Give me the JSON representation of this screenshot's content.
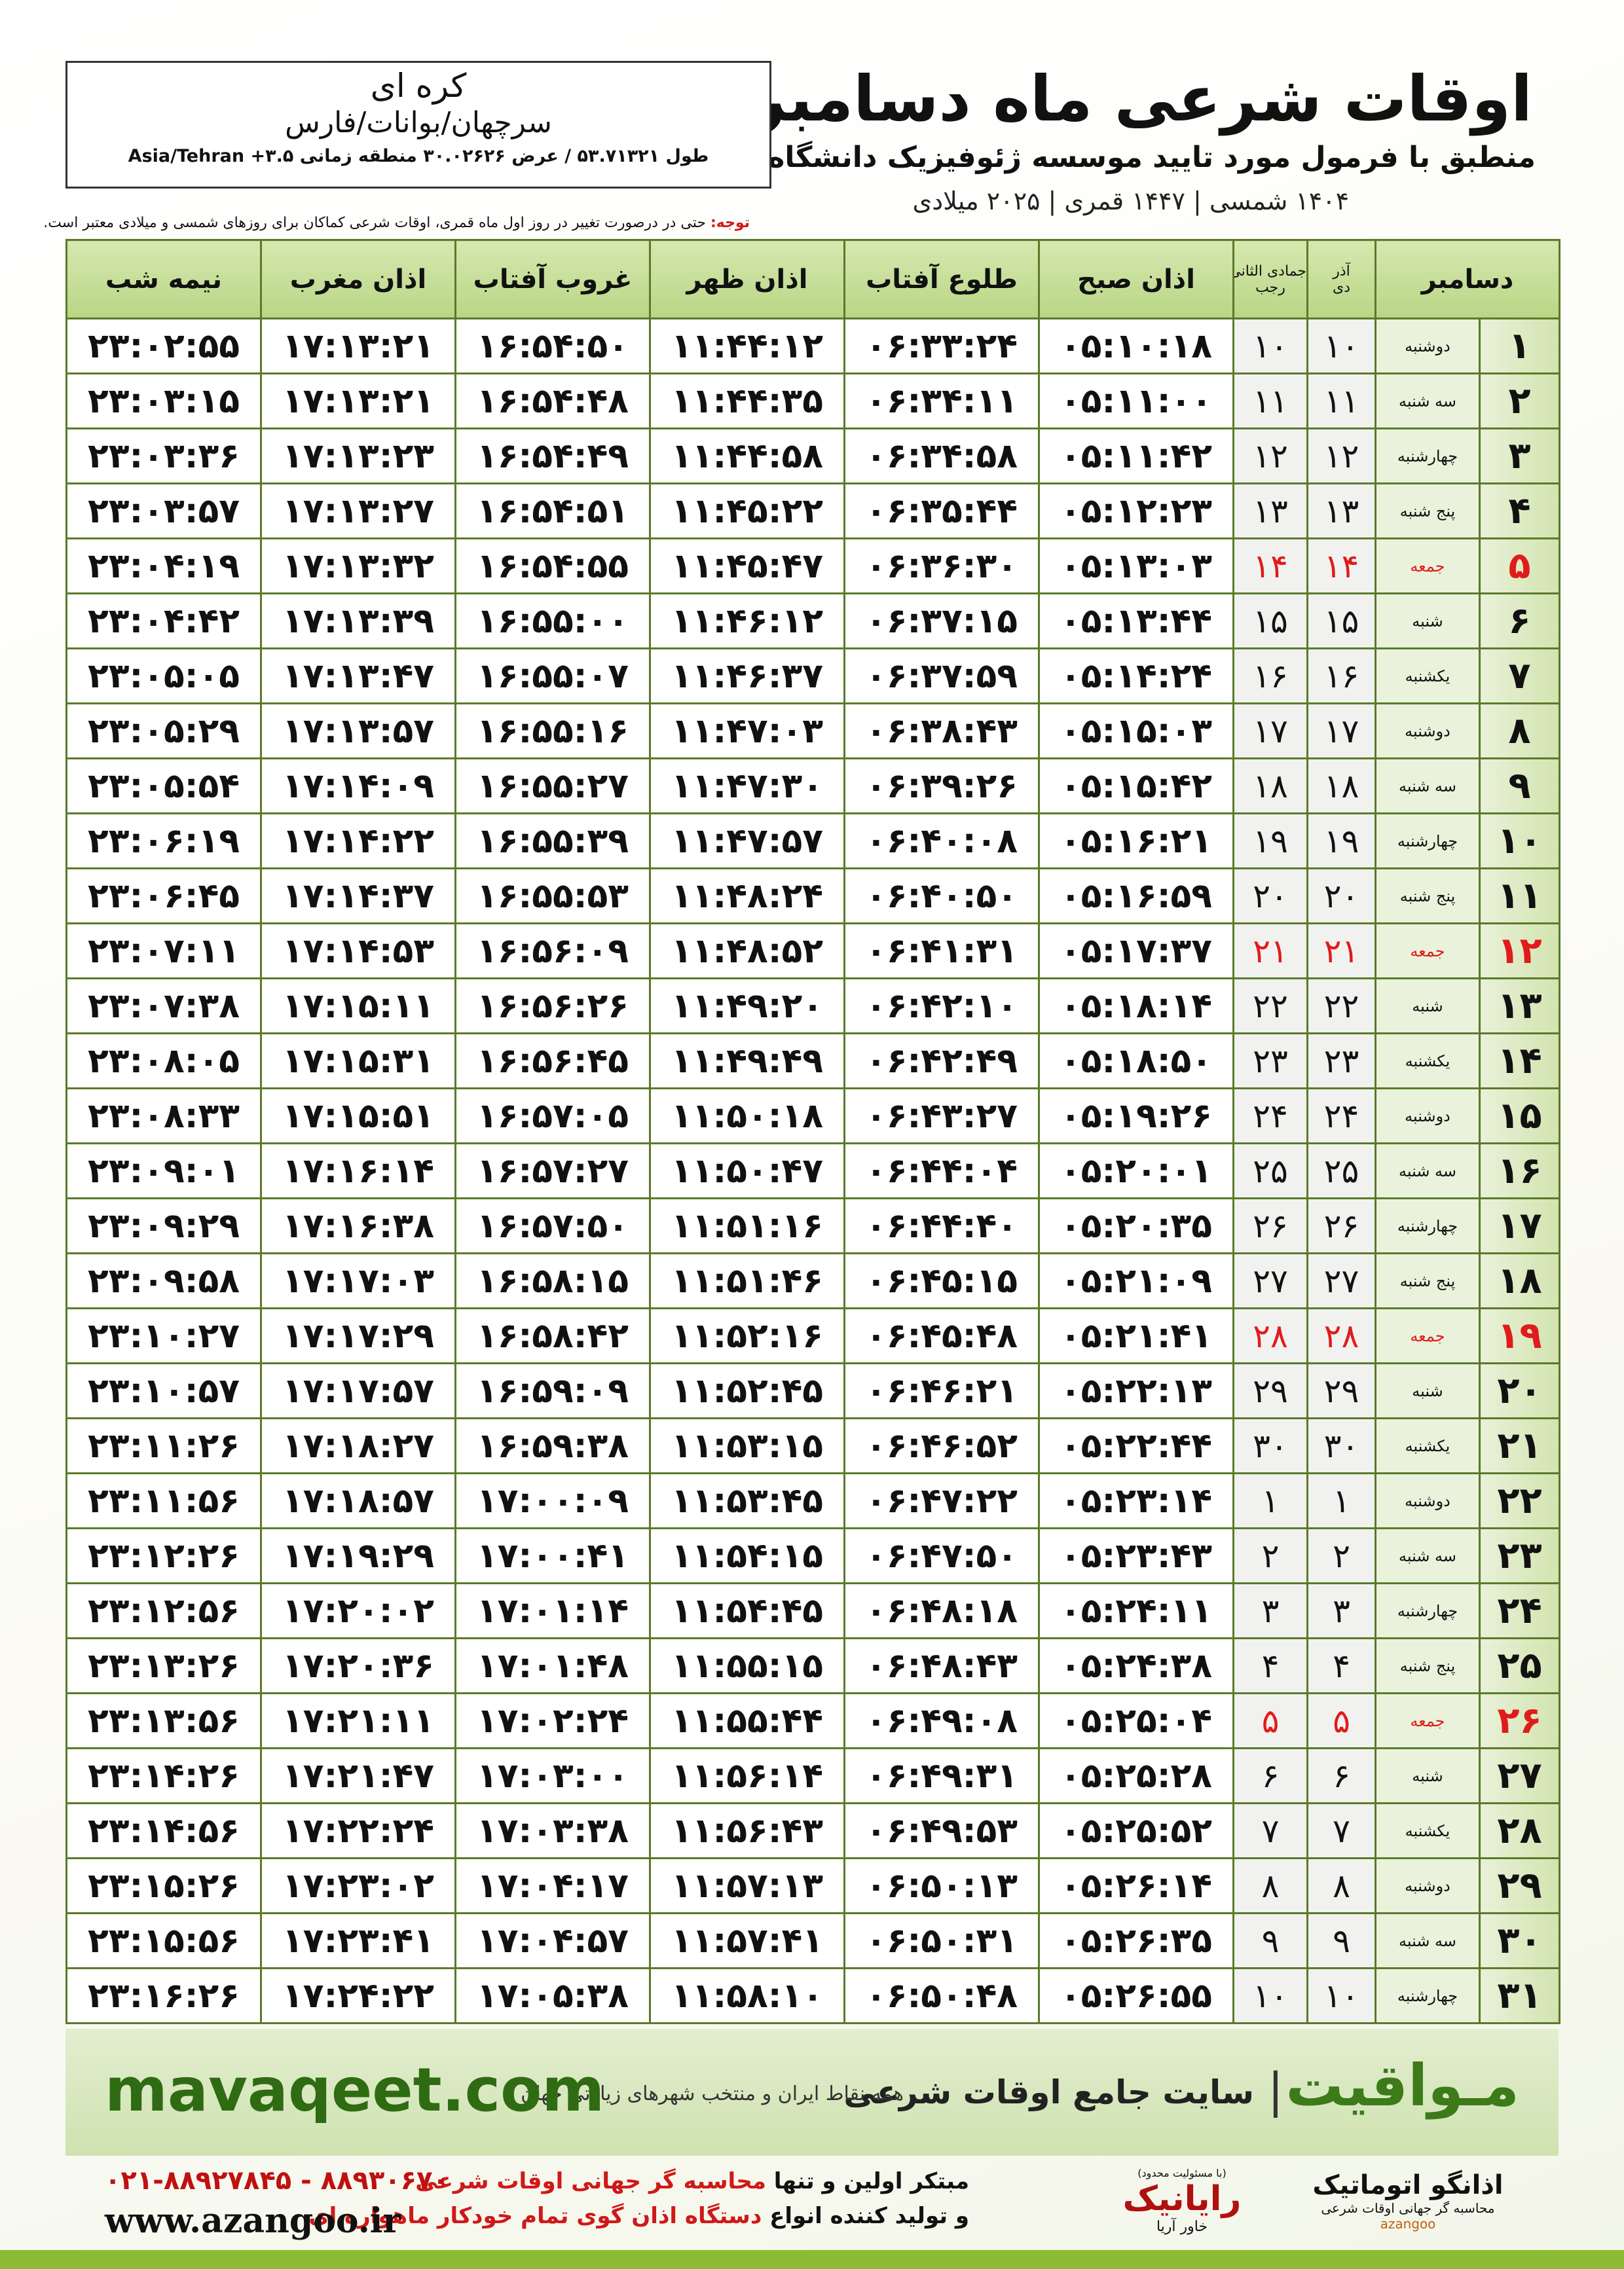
{
  "header": {
    "title": "اوقات شرعی ماه دسامبر",
    "subtitle": "منطبق با فرمول مورد تایید موسسه ژئوفیزیک دانشگاه تهران",
    "dates": "۱۴۰۴ شمسی | ۱۴۴۷ قمری | ۲۰۲۵ میلادی"
  },
  "location": {
    "name": "کره ای",
    "region": "سرچهان/بوانات/فارس",
    "coords": "طول ۵۳.۷۱۳۲۱ / عرض ۳۰.۰۲۶۲۶ منطقه زمانی ۳.۵+ Asia/Tehran"
  },
  "note": {
    "label": "توجه:",
    "text": "حتی در درصورت تغییر در روز اول ماه قمری، اوقات شرعی کماکان برای روزهای شمسی و میلادی معتبر است."
  },
  "table": {
    "columns": [
      "دسامبر",
      "آذر",
      "دی",
      "جمادی الثانی",
      "رجب",
      "اذان صبح",
      "طلوع آفتاب",
      "اذان ظهر",
      "غروب آفتاب",
      "اذان مغرب",
      "نیمه شب"
    ],
    "rows": [
      [
        "۱",
        "دوشنبه",
        "۱۰",
        "۱۰",
        "۰۵:۱۰:۱۸",
        "۰۶:۳۳:۲۴",
        "۱۱:۴۴:۱۲",
        "۱۶:۵۴:۵۰",
        "۱۷:۱۳:۲۱",
        "۲۳:۰۲:۵۵"
      ],
      [
        "۲",
        "سه شنبه",
        "۱۱",
        "۱۱",
        "۰۵:۱۱:۰۰",
        "۰۶:۳۴:۱۱",
        "۱۱:۴۴:۳۵",
        "۱۶:۵۴:۴۸",
        "۱۷:۱۳:۲۱",
        "۲۳:۰۳:۱۵"
      ],
      [
        "۳",
        "چهارشنبه",
        "۱۲",
        "۱۲",
        "۰۵:۱۱:۴۲",
        "۰۶:۳۴:۵۸",
        "۱۱:۴۴:۵۸",
        "۱۶:۵۴:۴۹",
        "۱۷:۱۳:۲۳",
        "۲۳:۰۳:۳۶"
      ],
      [
        "۴",
        "پنج شنبه",
        "۱۳",
        "۱۳",
        "۰۵:۱۲:۲۳",
        "۰۶:۳۵:۴۴",
        "۱۱:۴۵:۲۲",
        "۱۶:۵۴:۵۱",
        "۱۷:۱۳:۲۷",
        "۲۳:۰۳:۵۷"
      ],
      [
        "۵",
        "جمعه",
        "۱۴",
        "۱۴",
        "۰۵:۱۳:۰۳",
        "۰۶:۳۶:۳۰",
        "۱۱:۴۵:۴۷",
        "۱۶:۵۴:۵۵",
        "۱۷:۱۳:۳۲",
        "۲۳:۰۴:۱۹"
      ],
      [
        "۶",
        "شنبه",
        "۱۵",
        "۱۵",
        "۰۵:۱۳:۴۴",
        "۰۶:۳۷:۱۵",
        "۱۱:۴۶:۱۲",
        "۱۶:۵۵:۰۰",
        "۱۷:۱۳:۳۹",
        "۲۳:۰۴:۴۲"
      ],
      [
        "۷",
        "یکشنبه",
        "۱۶",
        "۱۶",
        "۰۵:۱۴:۲۴",
        "۰۶:۳۷:۵۹",
        "۱۱:۴۶:۳۷",
        "۱۶:۵۵:۰۷",
        "۱۷:۱۳:۴۷",
        "۲۳:۰۵:۰۵"
      ],
      [
        "۸",
        "دوشنبه",
        "۱۷",
        "۱۷",
        "۰۵:۱۵:۰۳",
        "۰۶:۳۸:۴۳",
        "۱۱:۴۷:۰۳",
        "۱۶:۵۵:۱۶",
        "۱۷:۱۳:۵۷",
        "۲۳:۰۵:۲۹"
      ],
      [
        "۹",
        "سه شنبه",
        "۱۸",
        "۱۸",
        "۰۵:۱۵:۴۲",
        "۰۶:۳۹:۲۶",
        "۱۱:۴۷:۳۰",
        "۱۶:۵۵:۲۷",
        "۱۷:۱۴:۰۹",
        "۲۳:۰۵:۵۴"
      ],
      [
        "۱۰",
        "چهارشنبه",
        "۱۹",
        "۱۹",
        "۰۵:۱۶:۲۱",
        "۰۶:۴۰:۰۸",
        "۱۱:۴۷:۵۷",
        "۱۶:۵۵:۳۹",
        "۱۷:۱۴:۲۲",
        "۲۳:۰۶:۱۹"
      ],
      [
        "۱۱",
        "پنج شنبه",
        "۲۰",
        "۲۰",
        "۰۵:۱۶:۵۹",
        "۰۶:۴۰:۵۰",
        "۱۱:۴۸:۲۴",
        "۱۶:۵۵:۵۳",
        "۱۷:۱۴:۳۷",
        "۲۳:۰۶:۴۵"
      ],
      [
        "۱۲",
        "جمعه",
        "۲۱",
        "۲۱",
        "۰۵:۱۷:۳۷",
        "۰۶:۴۱:۳۱",
        "۱۱:۴۸:۵۲",
        "۱۶:۵۶:۰۹",
        "۱۷:۱۴:۵۳",
        "۲۳:۰۷:۱۱"
      ],
      [
        "۱۳",
        "شنبه",
        "۲۲",
        "۲۲",
        "۰۵:۱۸:۱۴",
        "۰۶:۴۲:۱۰",
        "۱۱:۴۹:۲۰",
        "۱۶:۵۶:۲۶",
        "۱۷:۱۵:۱۱",
        "۲۳:۰۷:۳۸"
      ],
      [
        "۱۴",
        "یکشنبه",
        "۲۳",
        "۲۳",
        "۰۵:۱۸:۵۰",
        "۰۶:۴۲:۴۹",
        "۱۱:۴۹:۴۹",
        "۱۶:۵۶:۴۵",
        "۱۷:۱۵:۳۱",
        "۲۳:۰۸:۰۵"
      ],
      [
        "۱۵",
        "دوشنبه",
        "۲۴",
        "۲۴",
        "۰۵:۱۹:۲۶",
        "۰۶:۴۳:۲۷",
        "۱۱:۵۰:۱۸",
        "۱۶:۵۷:۰۵",
        "۱۷:۱۵:۵۱",
        "۲۳:۰۸:۳۳"
      ],
      [
        "۱۶",
        "سه شنبه",
        "۲۵",
        "۲۵",
        "۰۵:۲۰:۰۱",
        "۰۶:۴۴:۰۴",
        "۱۱:۵۰:۴۷",
        "۱۶:۵۷:۲۷",
        "۱۷:۱۶:۱۴",
        "۲۳:۰۹:۰۱"
      ],
      [
        "۱۷",
        "چهارشنبه",
        "۲۶",
        "۲۶",
        "۰۵:۲۰:۳۵",
        "۰۶:۴۴:۴۰",
        "۱۱:۵۱:۱۶",
        "۱۶:۵۷:۵۰",
        "۱۷:۱۶:۳۸",
        "۲۳:۰۹:۲۹"
      ],
      [
        "۱۸",
        "پنج شنبه",
        "۲۷",
        "۲۷",
        "۰۵:۲۱:۰۹",
        "۰۶:۴۵:۱۵",
        "۱۱:۵۱:۴۶",
        "۱۶:۵۸:۱۵",
        "۱۷:۱۷:۰۳",
        "۲۳:۰۹:۵۸"
      ],
      [
        "۱۹",
        "جمعه",
        "۲۸",
        "۲۸",
        "۰۵:۲۱:۴۱",
        "۰۶:۴۵:۴۸",
        "۱۱:۵۲:۱۶",
        "۱۶:۵۸:۴۲",
        "۱۷:۱۷:۲۹",
        "۲۳:۱۰:۲۷"
      ],
      [
        "۲۰",
        "شنبه",
        "۲۹",
        "۲۹",
        "۰۵:۲۲:۱۳",
        "۰۶:۴۶:۲۱",
        "۱۱:۵۲:۴۵",
        "۱۶:۵۹:۰۹",
        "۱۷:۱۷:۵۷",
        "۲۳:۱۰:۵۷"
      ],
      [
        "۲۱",
        "یکشنبه",
        "۳۰",
        "۳۰",
        "۰۵:۲۲:۴۴",
        "۰۶:۴۶:۵۲",
        "۱۱:۵۳:۱۵",
        "۱۶:۵۹:۳۸",
        "۱۷:۱۸:۲۷",
        "۲۳:۱۱:۲۶"
      ],
      [
        "۲۲",
        "دوشنبه",
        "۱",
        "۱",
        "۰۵:۲۳:۱۴",
        "۰۶:۴۷:۲۲",
        "۱۱:۵۳:۴۵",
        "۱۷:۰۰:۰۹",
        "۱۷:۱۸:۵۷",
        "۲۳:۱۱:۵۶"
      ],
      [
        "۲۳",
        "سه شنبه",
        "۲",
        "۲",
        "۰۵:۲۳:۴۳",
        "۰۶:۴۷:۵۰",
        "۱۱:۵۴:۱۵",
        "۱۷:۰۰:۴۱",
        "۱۷:۱۹:۲۹",
        "۲۳:۱۲:۲۶"
      ],
      [
        "۲۴",
        "چهارشنبه",
        "۳",
        "۳",
        "۰۵:۲۴:۱۱",
        "۰۶:۴۸:۱۸",
        "۱۱:۵۴:۴۵",
        "۱۷:۰۱:۱۴",
        "۱۷:۲۰:۰۲",
        "۲۳:۱۲:۵۶"
      ],
      [
        "۲۵",
        "پنج شنبه",
        "۴",
        "۴",
        "۰۵:۲۴:۳۸",
        "۰۶:۴۸:۴۳",
        "۱۱:۵۵:۱۵",
        "۱۷:۰۱:۴۸",
        "۱۷:۲۰:۳۶",
        "۲۳:۱۳:۲۶"
      ],
      [
        "۲۶",
        "جمعه",
        "۵",
        "۵",
        "۰۵:۲۵:۰۴",
        "۰۶:۴۹:۰۸",
        "۱۱:۵۵:۴۴",
        "۱۷:۰۲:۲۴",
        "۱۷:۲۱:۱۱",
        "۲۳:۱۳:۵۶"
      ],
      [
        "۲۷",
        "شنبه",
        "۶",
        "۶",
        "۰۵:۲۵:۲۸",
        "۰۶:۴۹:۳۱",
        "۱۱:۵۶:۱۴",
        "۱۷:۰۳:۰۰",
        "۱۷:۲۱:۴۷",
        "۲۳:۱۴:۲۶"
      ],
      [
        "۲۸",
        "یکشنبه",
        "۷",
        "۷",
        "۰۵:۲۵:۵۲",
        "۰۶:۴۹:۵۳",
        "۱۱:۵۶:۴۳",
        "۱۷:۰۳:۳۸",
        "۱۷:۲۲:۲۴",
        "۲۳:۱۴:۵۶"
      ],
      [
        "۲۹",
        "دوشنبه",
        "۸",
        "۸",
        "۰۵:۲۶:۱۴",
        "۰۶:۵۰:۱۳",
        "۱۱:۵۷:۱۳",
        "۱۷:۰۴:۱۷",
        "۱۷:۲۳:۰۲",
        "۲۳:۱۵:۲۶"
      ],
      [
        "۳۰",
        "سه شنبه",
        "۹",
        "۹",
        "۰۵:۲۶:۳۵",
        "۰۶:۵۰:۳۱",
        "۱۱:۵۷:۴۱",
        "۱۷:۰۴:۵۷",
        "۱۷:۲۳:۴۱",
        "۲۳:۱۵:۵۶"
      ],
      [
        "۳۱",
        "چهارشنبه",
        "۱۰",
        "۱۰",
        "۰۵:۲۶:۵۵",
        "۰۶:۵۰:۴۸",
        "۱۱:۵۸:۱۰",
        "۱۷:۰۵:۳۸",
        "۱۷:۲۴:۲۲",
        "۲۳:۱۶:۲۶"
      ]
    ]
  },
  "banner": {
    "brand": "مـواقیت",
    "slogan": "سایت جامع اوقات شرعی",
    "scope": "همه نقاط ایران و منتخب شهرهای زیارتی جهان",
    "site": "mavaqeet.com"
  },
  "footer": {
    "line1_a": "مبتکر اولین و تنها",
    "line1_b": "محاسبه گر جهانی اوقات شرعی",
    "line2_a": "و تولید کننده انواع",
    "line2_b": "دستگاه اذان گوی تمام خودکار ماهواره ای",
    "phone": "۰۲۱-۸۸۹۲۷۸۴۵ - ۸۸۹۳۰۶۷۰",
    "web": "www.azangoo.ir",
    "logo1_note": "(با مسئولیت محدود)",
    "logo1_name": "رایانیک",
    "logo1_sub": "خاور آریا",
    "logo2_name": "اذانگو اتوماتیک",
    "logo2_sub": "محاسبه گر جهانی اوقات شرعی",
    "logo2_brand": "azangoo"
  }
}
